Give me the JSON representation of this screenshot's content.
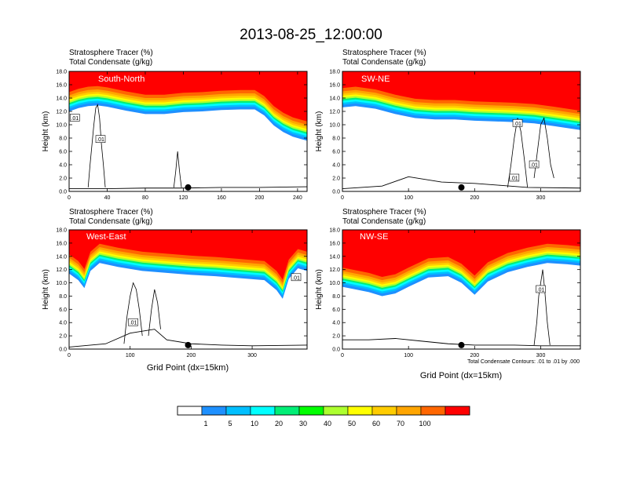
{
  "title": "2013-08-25_12:00:00",
  "footer_note": "Total Condensate Contours: .01 to .01 by .000",
  "colorbar": {
    "levels": [
      "1",
      "5",
      "10",
      "20",
      "30",
      "40",
      "50",
      "60",
      "70",
      "100"
    ],
    "colors": [
      "#ffffff",
      "#1e90ff",
      "#00bfff",
      "#00ffff",
      "#00ee76",
      "#00ff00",
      "#adff2f",
      "#ffff00",
      "#ffcc00",
      "#ffa500",
      "#ff6600",
      "#ff0000"
    ]
  },
  "chart_data": [
    {
      "type": "heatmap",
      "label": "South-North",
      "left_title": "Stratosphere Tracer   (%)",
      "left_subtitle": "Total Condensate   (g/kg)",
      "ylabel": "Height (km)",
      "xlabel": "",
      "xlim": [
        0,
        250
      ],
      "ylim": [
        0,
        18
      ],
      "xticks": [
        "0",
        "40",
        "80",
        "120",
        "160",
        "200",
        "240"
      ],
      "xtick_values": [
        0,
        40,
        80,
        120,
        160,
        200,
        240
      ],
      "yticks": [
        "0.0",
        "2.0",
        "4.0",
        "6.0",
        "8.0",
        "10.0",
        "12.0",
        "14.0",
        "16.0",
        "18.0"
      ],
      "ytick_values": [
        0,
        2,
        4,
        6,
        8,
        10,
        12,
        14,
        16,
        18
      ],
      "contour_labels": [
        ".01",
        ".01"
      ],
      "contour_label_pos": [
        [
          6,
          11
        ],
        [
          33,
          7.8
        ]
      ],
      "marker_x": 125,
      "tropopause_height_km": [
        [
          0,
          13.6
        ],
        [
          10,
          14.1
        ],
        [
          20,
          14.4
        ],
        [
          30,
          14.5
        ],
        [
          40,
          14.3
        ],
        [
          60,
          13.7
        ],
        [
          80,
          13.2
        ],
        [
          100,
          13.2
        ],
        [
          120,
          13.5
        ],
        [
          140,
          13.6
        ],
        [
          160,
          13.8
        ],
        [
          180,
          13.9
        ],
        [
          195,
          13.9
        ],
        [
          205,
          13.0
        ],
        [
          215,
          11.5
        ],
        [
          225,
          10.5
        ],
        [
          235,
          9.8
        ],
        [
          250,
          9.2
        ]
      ],
      "terrain_height_km": [
        [
          0,
          0.4
        ],
        [
          40,
          0.4
        ],
        [
          80,
          0.5
        ],
        [
          120,
          0.5
        ],
        [
          160,
          0.6
        ],
        [
          200,
          0.6
        ],
        [
          250,
          0.7
        ]
      ],
      "cloud_columns": [
        [
          [
            20,
            0.6
          ],
          [
            22,
            4
          ],
          [
            24,
            7
          ],
          [
            26,
            10
          ],
          [
            28,
            12.5
          ],
          [
            30,
            13
          ],
          [
            32,
            11
          ],
          [
            34,
            7
          ],
          [
            36,
            4
          ],
          [
            38,
            0.6
          ]
        ],
        [
          [
            110,
            0.6
          ],
          [
            112,
            3
          ],
          [
            114,
            6
          ],
          [
            116,
            3
          ],
          [
            118,
            0.6
          ]
        ]
      ]
    },
    {
      "type": "heatmap",
      "label": "SW-NE",
      "left_title": "Stratosphere Tracer   (%)",
      "left_subtitle": "Total Condensate   (g/kg)",
      "ylabel": "Height (km)",
      "xlabel": "",
      "xlim": [
        0,
        360
      ],
      "ylim": [
        0,
        18
      ],
      "xticks": [
        "0",
        "100",
        "200",
        "300"
      ],
      "xtick_values": [
        0,
        100,
        200,
        300
      ],
      "yticks": [
        "0.0",
        "2.0",
        "4.0",
        "6.0",
        "8.0",
        "10.0",
        "12.0",
        "14.0",
        "16.0",
        "18.0"
      ],
      "ytick_values": [
        0,
        2,
        4,
        6,
        8,
        10,
        12,
        14,
        16,
        18
      ],
      "contour_labels": [
        ".01",
        ".01",
        ".01"
      ],
      "contour_label_pos": [
        [
          265,
          10.2
        ],
        [
          290,
          4
        ],
        [
          260,
          2
        ]
      ],
      "marker_x": 180,
      "tropopause_height_km": [
        [
          0,
          14.2
        ],
        [
          20,
          14.4
        ],
        [
          50,
          14.0
        ],
        [
          80,
          13.2
        ],
        [
          110,
          12.6
        ],
        [
          140,
          12.4
        ],
        [
          170,
          12.4
        ],
        [
          200,
          12.2
        ],
        [
          230,
          12.1
        ],
        [
          260,
          12.0
        ],
        [
          290,
          11.8
        ],
        [
          320,
          11.4
        ],
        [
          360,
          10.8
        ]
      ],
      "terrain_height_km": [
        [
          0,
          0.4
        ],
        [
          60,
          0.8
        ],
        [
          100,
          2.2
        ],
        [
          150,
          1.4
        ],
        [
          200,
          1.2
        ],
        [
          240,
          0.9
        ],
        [
          280,
          0.6
        ],
        [
          360,
          0.5
        ]
      ],
      "cloud_columns": [
        [
          [
            250,
            0.6
          ],
          [
            255,
            4
          ],
          [
            260,
            8
          ],
          [
            265,
            11
          ],
          [
            270,
            9
          ],
          [
            275,
            5
          ],
          [
            280,
            0.6
          ]
        ],
        [
          [
            290,
            2
          ],
          [
            295,
            6
          ],
          [
            300,
            10
          ],
          [
            305,
            11
          ],
          [
            310,
            8
          ],
          [
            315,
            4
          ],
          [
            320,
            2
          ]
        ]
      ]
    },
    {
      "type": "heatmap",
      "label": "West-East",
      "left_title": "Stratosphere Tracer   (%)",
      "left_subtitle": "Total Condensate   (g/kg)",
      "ylabel": "Height (km)",
      "xlabel": "Grid Point (dx=15km)",
      "xlim": [
        0,
        390
      ],
      "ylim": [
        0,
        18
      ],
      "xticks": [
        "0",
        "100",
        "200",
        "300"
      ],
      "xtick_values": [
        0,
        100,
        200,
        300
      ],
      "yticks": [
        "0.0",
        "2.0",
        "4.0",
        "6.0",
        "8.0",
        "10.0",
        "12.0",
        "14.0",
        "16.0",
        "18.0"
      ],
      "ytick_values": [
        0,
        2,
        4,
        6,
        8,
        10,
        12,
        14,
        16,
        18
      ],
      "contour_labels": [
        ".01",
        ".01"
      ],
      "contour_label_pos": [
        [
          105,
          4
        ],
        [
          372,
          10.8
        ]
      ],
      "marker_x": 195,
      "tropopause_height_km": [
        [
          0,
          13.0
        ],
        [
          15,
          12.0
        ],
        [
          25,
          10.8
        ],
        [
          35,
          13.4
        ],
        [
          50,
          14.6
        ],
        [
          80,
          14.0
        ],
        [
          120,
          13.4
        ],
        [
          160,
          13.1
        ],
        [
          200,
          12.8
        ],
        [
          240,
          12.6
        ],
        [
          280,
          12.3
        ],
        [
          320,
          12.0
        ],
        [
          340,
          10.5
        ],
        [
          350,
          9.2
        ],
        [
          360,
          12.2
        ],
        [
          375,
          13.8
        ],
        [
          390,
          13.4
        ]
      ],
      "terrain_height_km": [
        [
          0,
          0.3
        ],
        [
          60,
          0.8
        ],
        [
          100,
          2.4
        ],
        [
          140,
          3.0
        ],
        [
          160,
          1.4
        ],
        [
          200,
          0.8
        ],
        [
          250,
          0.6
        ],
        [
          300,
          0.5
        ],
        [
          390,
          0.6
        ]
      ],
      "cloud_columns": [
        [
          [
            90,
            0.8
          ],
          [
            95,
            5
          ],
          [
            100,
            8
          ],
          [
            105,
            10
          ],
          [
            110,
            9
          ],
          [
            115,
            6
          ],
          [
            120,
            2
          ]
        ],
        [
          [
            130,
            2
          ],
          [
            135,
            6
          ],
          [
            140,
            9
          ],
          [
            145,
            7
          ],
          [
            150,
            3
          ]
        ]
      ]
    },
    {
      "type": "heatmap",
      "label": "NW-SE",
      "left_title": "Stratosphere Tracer   (%)",
      "left_subtitle": "Total Condensate   (g/kg)",
      "ylabel": "Height (km)",
      "xlabel": "Grid Point (dx=15km)",
      "xlim": [
        0,
        360
      ],
      "ylim": [
        0,
        18
      ],
      "xticks": [
        "0",
        "100",
        "200",
        "300"
      ],
      "xtick_values": [
        0,
        100,
        200,
        300
      ],
      "yticks": [
        "0.0",
        "2.0",
        "4.0",
        "6.0",
        "8.0",
        "10.0",
        "12.0",
        "14.0",
        "16.0",
        "18.0"
      ],
      "ytick_values": [
        0,
        2,
        4,
        6,
        8,
        10,
        12,
        14,
        16,
        18
      ],
      "contour_labels": [
        ".01"
      ],
      "contour_label_pos": [
        [
          300,
          9
        ]
      ],
      "marker_x": 180,
      "tropopause_height_km": [
        [
          0,
          11.0
        ],
        [
          20,
          10.6
        ],
        [
          40,
          10.2
        ],
        [
          60,
          9.6
        ],
        [
          80,
          10.0
        ],
        [
          100,
          11.0
        ],
        [
          130,
          12.4
        ],
        [
          160,
          12.6
        ],
        [
          180,
          11.6
        ],
        [
          200,
          9.8
        ],
        [
          220,
          11.8
        ],
        [
          250,
          13.2
        ],
        [
          280,
          14.0
        ],
        [
          310,
          14.6
        ],
        [
          340,
          14.4
        ],
        [
          360,
          14.2
        ]
      ],
      "terrain_height_km": [
        [
          0,
          1.4
        ],
        [
          40,
          1.4
        ],
        [
          80,
          1.6
        ],
        [
          120,
          1.2
        ],
        [
          160,
          0.8
        ],
        [
          200,
          0.6
        ],
        [
          260,
          0.6
        ],
        [
          300,
          0.5
        ],
        [
          360,
          0.5
        ]
      ],
      "cloud_columns": [
        [
          [
            290,
            0.6
          ],
          [
            294,
            4
          ],
          [
            297,
            8
          ],
          [
            300,
            10
          ],
          [
            303,
            12
          ],
          [
            306,
            9
          ],
          [
            310,
            4
          ],
          [
            314,
            0.6
          ]
        ]
      ]
    }
  ]
}
